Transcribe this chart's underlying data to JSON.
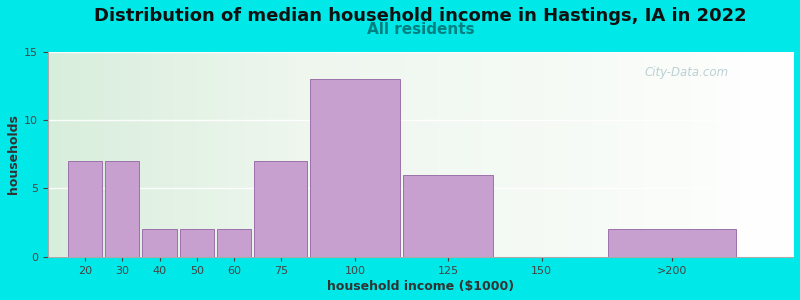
{
  "title": "Distribution of median household income in Hastings, IA in 2022",
  "subtitle": "All residents",
  "xlabel": "household income ($1000)",
  "ylabel": "households",
  "bar_heights": [
    7,
    7,
    2,
    2,
    2,
    7,
    13,
    6,
    0,
    2
  ],
  "bar_widths": [
    10,
    10,
    10,
    10,
    10,
    15,
    25,
    25,
    25,
    35
  ],
  "bar_lefts": [
    15,
    25,
    35,
    45,
    55,
    65,
    80,
    105,
    130,
    160
  ],
  "bar_color": "#c8a0d0",
  "bar_edgecolor": "#9b72aa",
  "ylim": [
    0,
    15
  ],
  "yticks": [
    0,
    5,
    10,
    15
  ],
  "xlim": [
    10,
    210
  ],
  "background_outer": "#00e8e8",
  "title_fontsize": 13,
  "subtitle_fontsize": 11,
  "subtitle_color": "#008080",
  "axis_label_fontsize": 9,
  "watermark_text": "City-Data.com",
  "xtick_labels": [
    "20",
    "30",
    "40",
    "50",
    "60",
    "75",
    "100",
    "125",
    "150",
    ">200"
  ]
}
